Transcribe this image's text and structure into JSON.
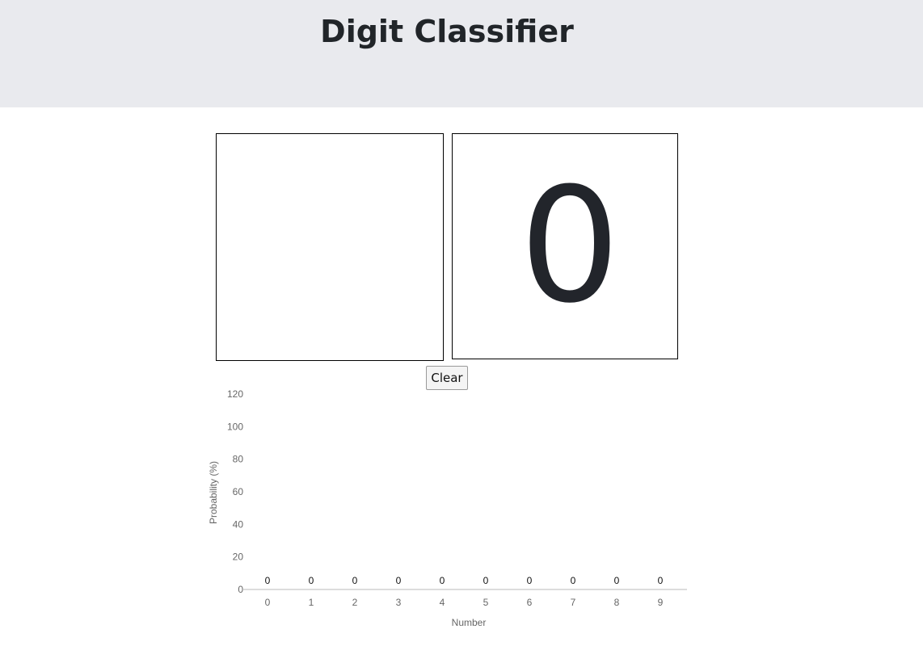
{
  "header": {
    "title": "Digit Classifier"
  },
  "result": {
    "digit": "0"
  },
  "controls": {
    "clear_label": "Clear"
  },
  "chart_data": {
    "type": "bar",
    "categories": [
      "0",
      "1",
      "2",
      "3",
      "4",
      "5",
      "6",
      "7",
      "8",
      "9"
    ],
    "values": [
      0,
      0,
      0,
      0,
      0,
      0,
      0,
      0,
      0,
      0
    ],
    "data_labels": [
      "0",
      "0",
      "0",
      "0",
      "0",
      "0",
      "0",
      "0",
      "0",
      "0"
    ],
    "xlabel": "Number",
    "ylabel": "Probability (%)",
    "ylim": [
      0,
      120
    ],
    "yticks": [
      "0",
      "20",
      "40",
      "60",
      "80",
      "100",
      "120"
    ],
    "grid": false
  }
}
